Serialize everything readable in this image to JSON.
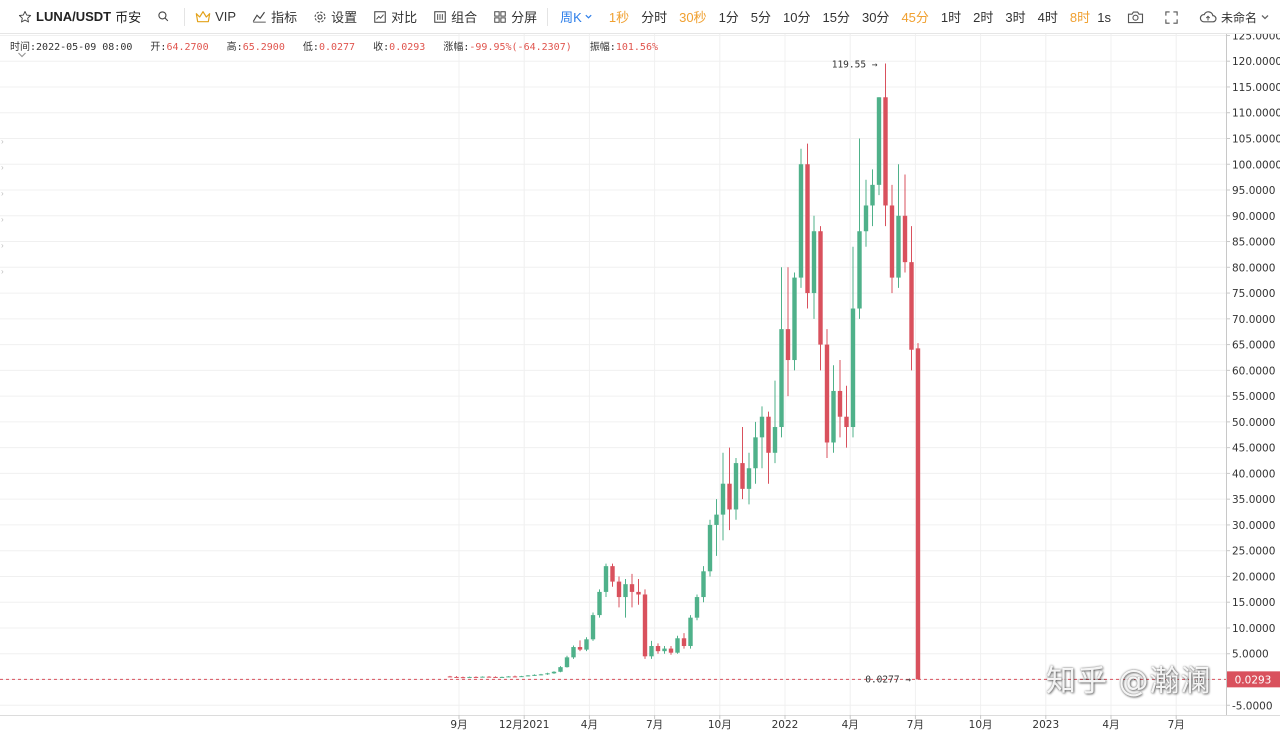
{
  "toolbar": {
    "symbol": "LUNA/USDT",
    "exchange": "币安",
    "vip_label": "VIP",
    "indicators_label": "指标",
    "settings_label": "设置",
    "compare_label": "对比",
    "combo_label": "组合",
    "split_label": "分屏",
    "intervals": [
      {
        "label": "周K",
        "state": "active"
      },
      {
        "label": "1秒",
        "state": "orange"
      },
      {
        "label": "分时",
        "state": "normal"
      },
      {
        "label": "30秒",
        "state": "orange"
      },
      {
        "label": "1分",
        "state": "normal"
      },
      {
        "label": "5分",
        "state": "normal"
      },
      {
        "label": "10分",
        "state": "normal"
      },
      {
        "label": "15分",
        "state": "normal"
      },
      {
        "label": "30分",
        "state": "normal"
      },
      {
        "label": "45分",
        "state": "orange"
      },
      {
        "label": "1时",
        "state": "normal"
      },
      {
        "label": "2时",
        "state": "normal"
      },
      {
        "label": "3时",
        "state": "normal"
      },
      {
        "label": "4时",
        "state": "normal"
      },
      {
        "label": "8时",
        "state": "orange"
      }
    ],
    "refresh_label": "1s",
    "account_label": "未命名"
  },
  "info": {
    "time_label": "时间:",
    "time": "2022-05-09 08:00",
    "open_label": "开:",
    "open": "64.2700",
    "high_label": "高:",
    "high": "65.2900",
    "low_label": "低:",
    "low": "0.0277",
    "close_label": "收:",
    "close": "0.0293",
    "change_label": "涨幅:",
    "change": "-99.95%(-64.2307)",
    "amp_label": "振幅:",
    "amp": "101.56%"
  },
  "colors": {
    "up": "#4fb18a",
    "down": "#d9515d",
    "orange": "#f0a030",
    "active": "#2b7de9"
  },
  "watermark": "知乎 @瀚澜",
  "chart_data": {
    "type": "candlestick",
    "interval": "week",
    "ylim": [
      -7.5,
      126
    ],
    "y_ticks": [
      -5,
      0,
      5,
      10,
      15,
      20,
      25,
      30,
      35,
      40,
      45,
      50,
      55,
      60,
      65,
      70,
      75,
      80,
      85,
      90,
      95,
      100,
      105,
      110,
      115,
      120,
      125
    ],
    "y_tick_labels": [
      "-5.0000",
      "",
      "5.0000",
      "10.0000",
      "15.0000",
      "20.0000",
      "25.0000",
      "30.0000",
      "35.0000",
      "40.0000",
      "45.0000",
      "50.0000",
      "55.0000",
      "60.0000",
      "65.0000",
      "70.0000",
      "75.0000",
      "80.0000",
      "85.0000",
      "90.0000",
      "95.0000",
      "100.0000",
      "105.0000",
      "110.0000",
      "115.0000",
      "120.0000",
      "125.0000"
    ],
    "x_labels": [
      "9月",
      "12月2021",
      "4月",
      "7月",
      "10月",
      "2022",
      "4月",
      "7月",
      "10月",
      "2023",
      "4月",
      "7月"
    ],
    "max_annotation": "119.55",
    "min_annotation": "0.0277",
    "last_price_label": "0.0293",
    "candles": [
      [
        0.6,
        0.7,
        0.45,
        0.5
      ],
      [
        0.5,
        0.65,
        0.4,
        0.45
      ],
      [
        0.45,
        0.55,
        0.35,
        0.4
      ],
      [
        0.4,
        0.55,
        0.35,
        0.5
      ],
      [
        0.5,
        0.6,
        0.4,
        0.45
      ],
      [
        0.45,
        0.6,
        0.4,
        0.55
      ],
      [
        0.55,
        0.65,
        0.45,
        0.5
      ],
      [
        0.5,
        0.6,
        0.4,
        0.45
      ],
      [
        0.45,
        0.55,
        0.4,
        0.5
      ],
      [
        0.5,
        0.65,
        0.45,
        0.6
      ],
      [
        0.6,
        0.75,
        0.5,
        0.55
      ],
      [
        0.55,
        0.7,
        0.5,
        0.65
      ],
      [
        0.65,
        0.85,
        0.6,
        0.8
      ],
      [
        0.8,
        1.0,
        0.7,
        0.9
      ],
      [
        0.9,
        1.1,
        0.8,
        1.0
      ],
      [
        1.0,
        1.3,
        0.9,
        1.2
      ],
      [
        1.2,
        1.6,
        1.1,
        1.5
      ],
      [
        1.5,
        2.6,
        1.4,
        2.4
      ],
      [
        2.4,
        4.6,
        2.3,
        4.3
      ],
      [
        4.3,
        6.6,
        4.0,
        6.3
      ],
      [
        6.3,
        7.6,
        5.5,
        5.8
      ],
      [
        5.8,
        8.2,
        5.5,
        7.8
      ],
      [
        7.8,
        13.0,
        7.5,
        12.5
      ],
      [
        12.5,
        17.5,
        12.0,
        17.0
      ],
      [
        17.0,
        22.5,
        16.0,
        22.0
      ],
      [
        22.0,
        22.5,
        18.0,
        19.0
      ],
      [
        19.0,
        20.0,
        14.0,
        16.0
      ],
      [
        16.0,
        19.5,
        12.0,
        18.5
      ],
      [
        18.5,
        20.5,
        14.0,
        17.0
      ],
      [
        17.0,
        19.5,
        14.5,
        16.5
      ],
      [
        16.5,
        17.5,
        4.0,
        4.5
      ],
      [
        4.5,
        7.5,
        4.0,
        6.5
      ],
      [
        6.5,
        7.0,
        5.0,
        5.5
      ],
      [
        5.5,
        6.5,
        5.0,
        6.0
      ],
      [
        6.0,
        6.5,
        4.8,
        5.2
      ],
      [
        5.2,
        8.5,
        5.0,
        8.0
      ],
      [
        8.0,
        9.0,
        6.0,
        6.5
      ],
      [
        6.5,
        12.5,
        6.0,
        12.0
      ],
      [
        12.0,
        16.5,
        11.5,
        16.0
      ],
      [
        16.0,
        22.0,
        15.0,
        21.0
      ],
      [
        21.0,
        31.0,
        20.0,
        30.0
      ],
      [
        30.0,
        35.0,
        24.0,
        32.0
      ],
      [
        32.0,
        44.0,
        27.0,
        38.0
      ],
      [
        38.0,
        45.0,
        29.0,
        33.0
      ],
      [
        33.0,
        43.0,
        31.0,
        42.0
      ],
      [
        42.0,
        49.0,
        35.0,
        37.0
      ],
      [
        37.0,
        44.0,
        34.0,
        41.0
      ],
      [
        41.0,
        50.0,
        38.0,
        47.0
      ],
      [
        47.0,
        53.0,
        41.0,
        51.0
      ],
      [
        51.0,
        52.0,
        38.0,
        44.0
      ],
      [
        44.0,
        58.0,
        42.0,
        49.0
      ],
      [
        49.0,
        80.0,
        47.0,
        68.0
      ],
      [
        68.0,
        80.0,
        55.0,
        62.0
      ],
      [
        62.0,
        79.0,
        60.0,
        78.0
      ],
      [
        78.0,
        103.0,
        76.0,
        100.0
      ],
      [
        100.0,
        104.0,
        72.0,
        75.0
      ],
      [
        75.0,
        90.0,
        70.0,
        87.0
      ],
      [
        87.0,
        88.0,
        60.0,
        65.0
      ],
      [
        65.0,
        68.0,
        43.0,
        46.0
      ],
      [
        46.0,
        61.0,
        44.0,
        56.0
      ],
      [
        56.0,
        62.0,
        47.0,
        51.0
      ],
      [
        51.0,
        57.0,
        45.0,
        49.0
      ],
      [
        49.0,
        84.0,
        47.0,
        72.0
      ],
      [
        72.0,
        105.0,
        70.0,
        87.0
      ],
      [
        87.0,
        97.0,
        84.0,
        92.0
      ],
      [
        92.0,
        99.0,
        88.0,
        96.0
      ],
      [
        96.0,
        113.0,
        94.0,
        113.0
      ],
      [
        113.0,
        119.55,
        88.0,
        92.0
      ],
      [
        92.0,
        96.0,
        75.0,
        78.0
      ],
      [
        78.0,
        100.0,
        76.0,
        90.0
      ],
      [
        90.0,
        98.0,
        79.0,
        81.0
      ],
      [
        81.0,
        88.0,
        60.0,
        64.0
      ],
      [
        64.27,
        65.29,
        0.0277,
        0.0293
      ]
    ]
  }
}
